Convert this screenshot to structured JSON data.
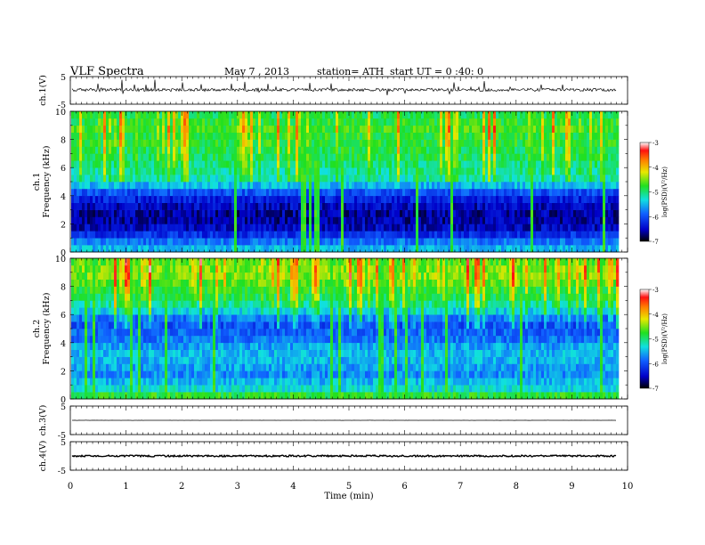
{
  "header": {
    "title": "VLF  Spectra",
    "date": "May 7  , 2013",
    "station": "station= ATH",
    "start": "start  UT  =   0 :40: 0"
  },
  "chart_data": {
    "type": "heatmap",
    "xlabel": "Time  (min)",
    "xlim": [
      0,
      10
    ],
    "x_ticks": [
      "0",
      "1",
      "2",
      "3",
      "4",
      "5",
      "6",
      "7",
      "8",
      "9",
      "10"
    ],
    "data_end_min": 9.8,
    "panels": [
      {
        "id": "ch1-wave",
        "type": "line",
        "ylabel": "ch.1(V)",
        "ylim": [
          -5,
          5
        ],
        "y_ticks": [
          "5",
          "-5"
        ],
        "baseline": 0.2,
        "noise": 0.55
      },
      {
        "id": "ch1-spec",
        "type": "heatmap",
        "ylabel": "ch.1\nFrequency  (kHz)",
        "ylim": [
          0,
          10
        ],
        "y_ticks": [
          "0",
          "2",
          "4",
          "6",
          "8",
          "10"
        ],
        "colorbar": {
          "label": "log(PSD)(V²/Hz)",
          "range": [
            -7,
            -3
          ],
          "ticks": [
            "-3",
            "-4",
            "-5",
            "-6",
            "-7"
          ]
        },
        "band_levels_low_to_high": [
          -5.5,
          -5.8,
          -6.2,
          -6.5,
          -6.6,
          -6.6,
          -6.5,
          -6.3,
          -6.0,
          -5.5,
          -5.2,
          -5.1,
          -5.0,
          -4.9,
          -4.9,
          -4.8,
          -4.8,
          -4.7,
          -4.8,
          -4.9
        ]
      },
      {
        "id": "ch2-spec",
        "type": "heatmap",
        "ylabel": "ch.2\nFrequency  (kHz)",
        "ylim": [
          0,
          10
        ],
        "y_ticks": [
          "0",
          "2",
          "4",
          "6",
          "8",
          "10"
        ],
        "colorbar": {
          "label": "log(PSD)(V²/Hz)",
          "range": [
            -7,
            -3
          ],
          "ticks": [
            "-3",
            "-4",
            "-5",
            "-6",
            "-7"
          ]
        },
        "band_levels_low_to_high": [
          -4.8,
          -5.3,
          -5.5,
          -5.7,
          -5.6,
          -5.5,
          -5.5,
          -5.6,
          -5.8,
          -5.9,
          -6.0,
          -5.8,
          -5.4,
          -5.1,
          -4.9,
          -4.8,
          -4.6,
          -4.5,
          -4.5,
          -4.6
        ]
      },
      {
        "id": "ch3-wave",
        "type": "line",
        "ylabel": "ch.3(V)",
        "ylim": [
          -5,
          5
        ],
        "y_ticks": [
          "5",
          "-5"
        ],
        "baseline": 0.0,
        "noise": 0.02
      },
      {
        "id": "ch4-wave",
        "type": "line",
        "ylabel": "ch.4(V)",
        "ylim": [
          -5,
          5
        ],
        "y_ticks": [
          "5",
          "-5"
        ],
        "baseline": 0.0,
        "noise": 0.3
      }
    ]
  }
}
